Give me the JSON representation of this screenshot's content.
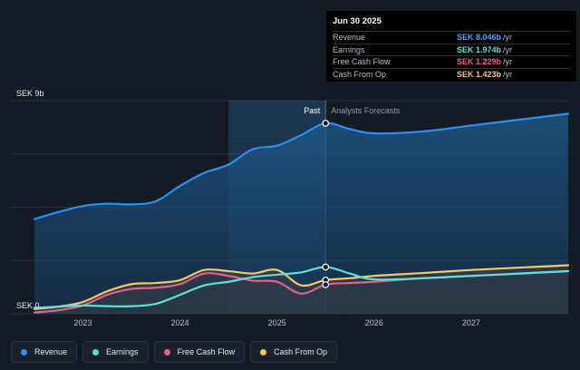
{
  "tooltip": {
    "title": "Jun 30 2025",
    "rows": [
      {
        "label": "Revenue",
        "value": "SEK 8.046b",
        "unit": "/yr",
        "color": "#4aa3ff"
      },
      {
        "label": "Earnings",
        "value": "SEK 1.974b",
        "unit": "/yr",
        "color": "#5ee0d8"
      },
      {
        "label": "Free Cash Flow",
        "value": "SEK 1.229b",
        "unit": "/yr",
        "color": "#e8608a"
      },
      {
        "label": "Cash From Op",
        "value": "SEK 1.423b",
        "unit": "/yr",
        "color": "#f3c86b"
      }
    ]
  },
  "legend": [
    {
      "label": "Revenue",
      "color": "#2f8ff0"
    },
    {
      "label": "Earnings",
      "color": "#5ee0d8"
    },
    {
      "label": "Free Cash Flow",
      "color": "#e8608a"
    },
    {
      "label": "Cash From Op",
      "color": "#f3c86b"
    }
  ],
  "chart_data": {
    "type": "line",
    "y_top_label": "SEK 9b",
    "y_bottom_label": "SEK 0",
    "past_label": "Past",
    "forecast_label": "Analysts Forecasts",
    "ylim": [
      0,
      9
    ],
    "xlim": [
      2022.5,
      2028.0
    ],
    "divider_x": 2025.5,
    "highlight_x": 2024.5,
    "x_ticks": [
      {
        "label": "2023",
        "x": 2023.0
      },
      {
        "label": "2024",
        "x": 2024.0
      },
      {
        "label": "2025",
        "x": 2025.0
      },
      {
        "label": "2026",
        "x": 2026.0
      },
      {
        "label": "2027",
        "x": 2027.0
      }
    ],
    "series": [
      {
        "name": "Revenue",
        "color": "#2f8ff0",
        "fill": true,
        "points": [
          [
            2022.5,
            4.0
          ],
          [
            2022.75,
            4.3
          ],
          [
            2023.0,
            4.55
          ],
          [
            2023.25,
            4.65
          ],
          [
            2023.5,
            4.62
          ],
          [
            2023.75,
            4.75
          ],
          [
            2024.0,
            5.4
          ],
          [
            2024.25,
            5.95
          ],
          [
            2024.5,
            6.3
          ],
          [
            2024.75,
            6.95
          ],
          [
            2025.0,
            7.1
          ],
          [
            2025.25,
            7.55
          ],
          [
            2025.5,
            8.046
          ],
          [
            2025.75,
            7.8
          ],
          [
            2026.0,
            7.62
          ],
          [
            2026.5,
            7.7
          ],
          [
            2027.0,
            7.95
          ],
          [
            2027.5,
            8.2
          ],
          [
            2028.0,
            8.45
          ]
        ]
      },
      {
        "name": "Earnings",
        "color": "#5ee0d8",
        "fill": false,
        "points": [
          [
            2022.5,
            0.25
          ],
          [
            2022.75,
            0.3
          ],
          [
            2023.0,
            0.35
          ],
          [
            2023.25,
            0.32
          ],
          [
            2023.5,
            0.32
          ],
          [
            2023.75,
            0.42
          ],
          [
            2024.0,
            0.8
          ],
          [
            2024.25,
            1.2
          ],
          [
            2024.5,
            1.35
          ],
          [
            2024.75,
            1.55
          ],
          [
            2025.0,
            1.65
          ],
          [
            2025.25,
            1.75
          ],
          [
            2025.5,
            1.974
          ],
          [
            2025.75,
            1.7
          ],
          [
            2026.0,
            1.45
          ],
          [
            2026.5,
            1.5
          ],
          [
            2027.0,
            1.6
          ],
          [
            2027.5,
            1.7
          ],
          [
            2028.0,
            1.8
          ]
        ]
      },
      {
        "name": "Free Cash Flow",
        "color": "#e8608a",
        "fill": false,
        "points": [
          [
            2022.5,
            0.05
          ],
          [
            2022.75,
            0.15
          ],
          [
            2023.0,
            0.35
          ],
          [
            2023.25,
            0.8
          ],
          [
            2023.5,
            1.05
          ],
          [
            2023.75,
            1.1
          ],
          [
            2024.0,
            1.25
          ],
          [
            2024.25,
            1.7
          ],
          [
            2024.5,
            1.6
          ],
          [
            2024.75,
            1.4
          ],
          [
            2025.0,
            1.35
          ],
          [
            2025.25,
            0.85
          ],
          [
            2025.5,
            1.229
          ],
          [
            2025.75,
            1.3
          ],
          [
            2026.0,
            1.35
          ],
          [
            2026.5,
            1.5
          ],
          [
            2027.0,
            1.6
          ],
          [
            2027.5,
            1.7
          ],
          [
            2028.0,
            1.8
          ]
        ]
      },
      {
        "name": "Cash From Op",
        "color": "#f3c86b",
        "fill": false,
        "points": [
          [
            2022.5,
            0.2
          ],
          [
            2022.75,
            0.3
          ],
          [
            2023.0,
            0.5
          ],
          [
            2023.25,
            0.95
          ],
          [
            2023.5,
            1.25
          ],
          [
            2023.75,
            1.3
          ],
          [
            2024.0,
            1.42
          ],
          [
            2024.25,
            1.85
          ],
          [
            2024.5,
            1.8
          ],
          [
            2024.75,
            1.7
          ],
          [
            2025.0,
            1.85
          ],
          [
            2025.25,
            1.2
          ],
          [
            2025.5,
            1.423
          ],
          [
            2025.75,
            1.5
          ],
          [
            2026.0,
            1.6
          ],
          [
            2026.5,
            1.72
          ],
          [
            2027.0,
            1.85
          ],
          [
            2027.5,
            1.95
          ],
          [
            2028.0,
            2.05
          ]
        ]
      }
    ]
  }
}
